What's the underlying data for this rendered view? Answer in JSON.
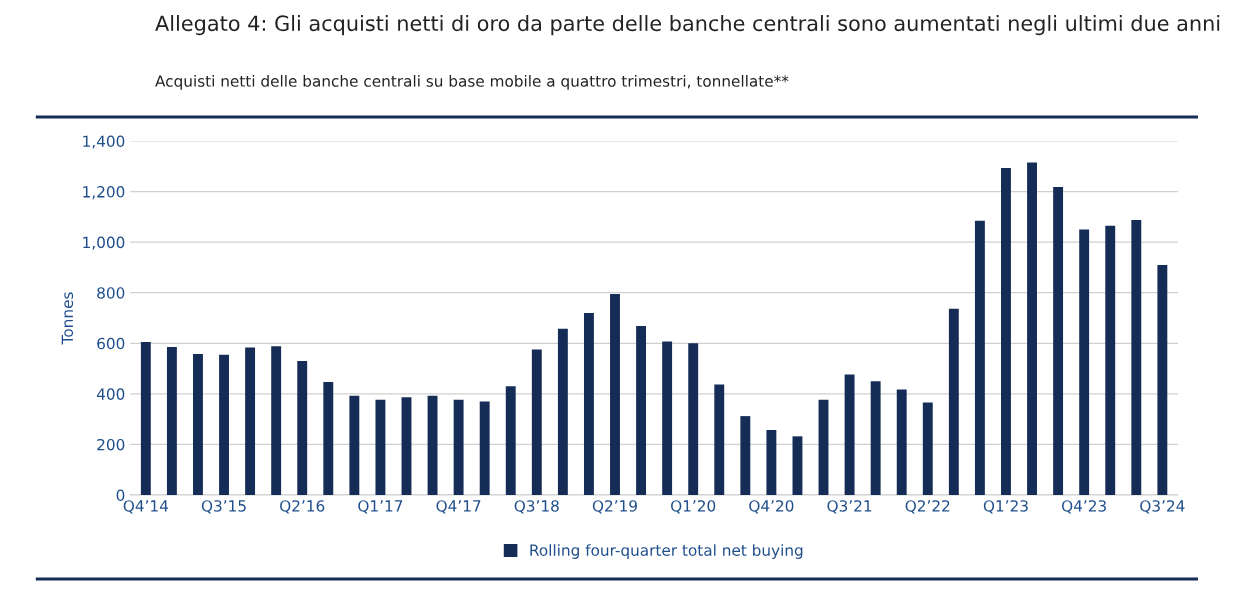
{
  "chart_data": {
    "type": "bar",
    "title": "Allegato 4: Gli acquisti netti di oro da parte delle banche centrali sono aumentati negli ultimi due anni",
    "subtitle": "Acquisti netti delle banche centrali su base mobile a quattro trimestri, tonnellate**",
    "ylabel": "Tonnes",
    "categories": [
      "Q4’14",
      null,
      null,
      "Q3’15",
      null,
      null,
      "Q2’16",
      null,
      null,
      "Q1’17",
      null,
      null,
      "Q4’17",
      null,
      null,
      "Q3’18",
      null,
      null,
      "Q2’19",
      null,
      null,
      "Q1’20",
      null,
      null,
      "Q4’20",
      null,
      null,
      "Q3’21",
      null,
      null,
      "Q2’22",
      null,
      null,
      "Q1’23",
      null,
      null,
      "Q4’23",
      null,
      null,
      "Q3’24"
    ],
    "series": [
      {
        "name": "Rolling four-quarter total net buying",
        "color": "#152d56",
        "values": [
          605,
          585,
          558,
          555,
          583,
          588,
          530,
          447,
          393,
          377,
          387,
          393,
          377,
          370,
          430,
          575,
          657,
          720,
          795,
          668,
          607,
          600,
          437,
          312,
          257,
          232,
          377,
          477,
          450,
          417,
          366,
          737,
          1085,
          1293,
          1315,
          1218,
          1050,
          1065,
          1088,
          910
        ]
      }
    ],
    "ylim": [
      0,
      1400
    ],
    "yticks": [
      {
        "value": 0,
        "label": "0"
      },
      {
        "value": 200,
        "label": "200"
      },
      {
        "value": 400,
        "label": "400"
      },
      {
        "value": 600,
        "label": "600"
      },
      {
        "value": 800,
        "label": "800"
      },
      {
        "value": 1000,
        "label": "1,000"
      },
      {
        "value": 1200,
        "label": "1,200"
      },
      {
        "value": 1400,
        "label": "1,400"
      }
    ],
    "grid": "y",
    "legend": "bottom"
  }
}
